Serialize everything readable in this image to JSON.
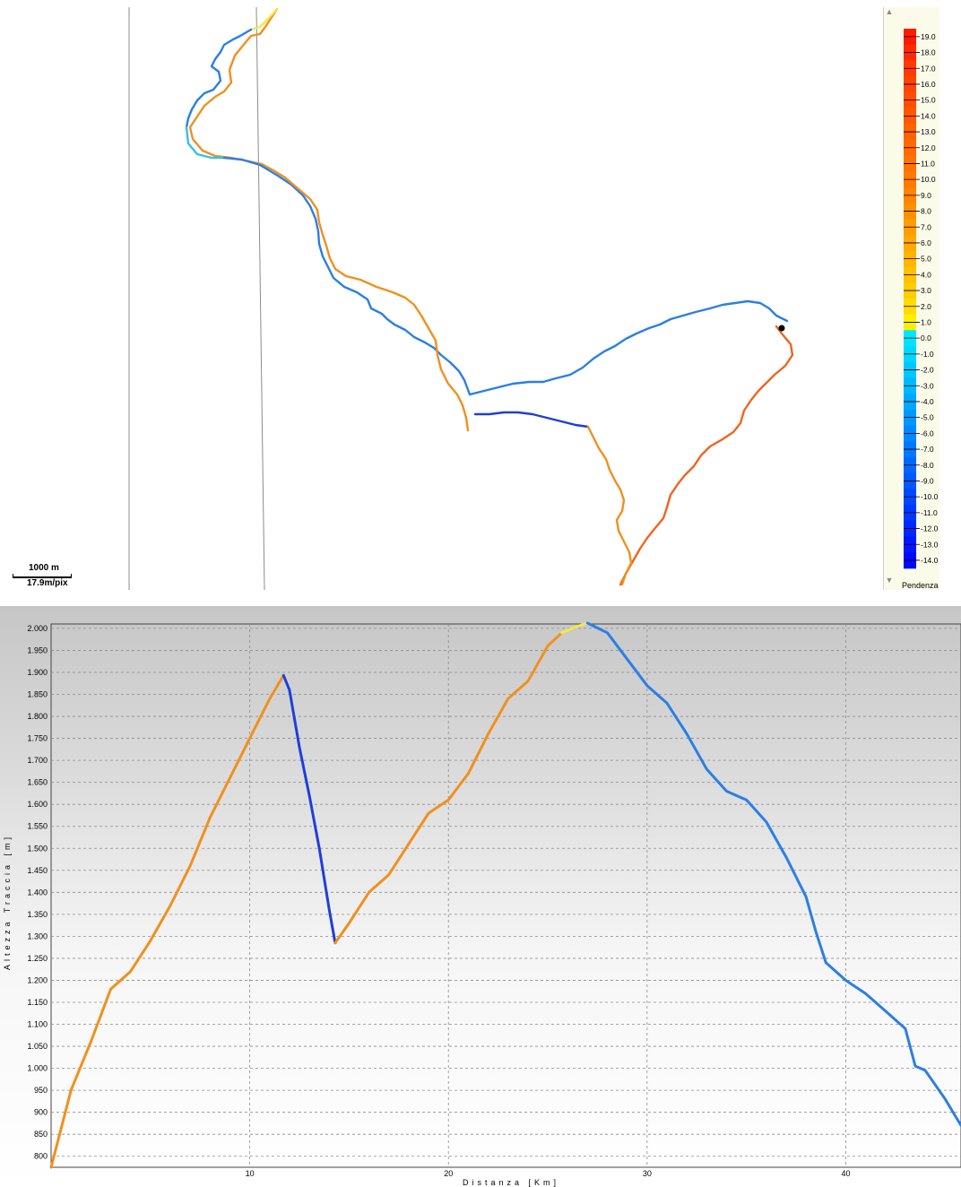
{
  "map": {
    "scale_distance": "1000 m",
    "scale_resolution": "17.9m/pix",
    "legend": {
      "title": "Pendenza",
      "labels": [
        "19.0",
        "18.0",
        "17.0",
        "16.0",
        "15.0",
        "14.0",
        "13.0",
        "12.0",
        "11.0",
        "10.0",
        "9.0",
        "8.0",
        "7.0",
        "6.0",
        "5.0",
        "4.0",
        "3.0",
        "2.0",
        "1.0",
        "0.0",
        "-1.0",
        "-2.0",
        "-3.0",
        "-4.0",
        "-5.0",
        "-6.0",
        "-7.0",
        "-8.0",
        "-9.0",
        "-10.0",
        "-11.0",
        "-12.0",
        "-13.0",
        "-14.0"
      ],
      "colors": [
        "#ff1a00",
        "#ff2a00",
        "#ff3a00",
        "#ff4400",
        "#ff4e00",
        "#ff5800",
        "#ff6200",
        "#ff6a00",
        "#ff7200",
        "#ff7a00",
        "#ff8400",
        "#ff9000",
        "#ff9c00",
        "#ffa800",
        "#ffb400",
        "#ffc000",
        "#ffcc00",
        "#ffdc00",
        "#ffee00",
        "#00e5ff",
        "#00d8ff",
        "#00c8ff",
        "#00b8ff",
        "#00a8ff",
        "#0098ff",
        "#0088ff",
        "#0078ff",
        "#0068ff",
        "#0058ff",
        "#0048ff",
        "#0038ff",
        "#0028ff",
        "#0018ff",
        "#0008ff"
      ],
      "scroll_up_icon": "triangle-up",
      "scroll_down_icon": "triangle-down"
    },
    "colors": {
      "descent_dark": "#1f3fd8",
      "descent_mid": "#2a7fe6",
      "descent_light": "#35c0ea",
      "climb": "#f0901e",
      "climb_light": "#f7b52a",
      "climb_steep": "#f0641e",
      "flat": "#f2e94a"
    }
  },
  "chart_data": {
    "type": "line",
    "title": "",
    "xlabel": "Distanza [Km]",
    "ylabel": "Altezza Traccia [m]",
    "xlim": [
      0,
      45.8
    ],
    "ylim": [
      775,
      2010
    ],
    "xticks": [
      10,
      20,
      30,
      40
    ],
    "yticks": [
      800,
      850,
      900,
      950,
      1000,
      1050,
      1100,
      1150,
      1200,
      1250,
      1300,
      1350,
      1400,
      1450,
      1500,
      1550,
      1600,
      1650,
      1700,
      1750,
      1800,
      1850,
      1900,
      1950,
      2000
    ],
    "ytick_labels": [
      "800",
      "850",
      "900",
      "950",
      "1.000",
      "1.050",
      "1.100",
      "1.150",
      "1.200",
      "1.250",
      "1.300",
      "1.350",
      "1.400",
      "1.450",
      "1.500",
      "1.550",
      "1.600",
      "1.650",
      "1.700",
      "1.750",
      "1.800",
      "1.850",
      "1.900",
      "1.950",
      "2.000"
    ],
    "grid": true,
    "series": [
      {
        "color": "#f0901e",
        "x": [
          0.0,
          1.0,
          2.0,
          3.0,
          4.0,
          5.0,
          6.0,
          7.0,
          8.0,
          9.0,
          10.0,
          11.0,
          11.7
        ],
        "y": [
          775,
          950,
          1060,
          1180,
          1220,
          1290,
          1370,
          1460,
          1570,
          1660,
          1750,
          1840,
          1893
        ]
      },
      {
        "color": "#1f3fd8",
        "x": [
          11.7,
          12.0,
          12.5,
          13.0,
          13.5,
          14.0,
          14.3
        ],
        "y": [
          1893,
          1860,
          1730,
          1620,
          1500,
          1360,
          1285
        ]
      },
      {
        "color": "#f0901e",
        "x": [
          14.3,
          15.0,
          16.0,
          17.0,
          18.0,
          19.0,
          20.0,
          21.0,
          22.0,
          23.0,
          24.0,
          25.0,
          25.7
        ],
        "y": [
          1285,
          1330,
          1400,
          1440,
          1510,
          1580,
          1610,
          1670,
          1760,
          1840,
          1880,
          1960,
          1990
        ]
      },
      {
        "color": "#f2e94a",
        "x": [
          25.7,
          26.5,
          27.0
        ],
        "y": [
          1990,
          2005,
          2012
        ]
      },
      {
        "color": "#2a7fe6",
        "x": [
          27.0,
          28.0,
          29.0,
          30.0,
          31.0,
          32.0,
          33.0,
          34.0,
          35.0,
          36.0,
          37.0,
          38.0,
          38.5,
          39.0,
          40.0,
          41.0,
          42.0,
          43.0,
          43.5,
          44.0,
          45.0,
          45.8
        ],
        "y": [
          2012,
          1990,
          1930,
          1870,
          1830,
          1760,
          1680,
          1630,
          1610,
          1560,
          1480,
          1390,
          1310,
          1240,
          1200,
          1170,
          1130,
          1090,
          1005,
          995,
          930,
          870
        ]
      }
    ]
  }
}
